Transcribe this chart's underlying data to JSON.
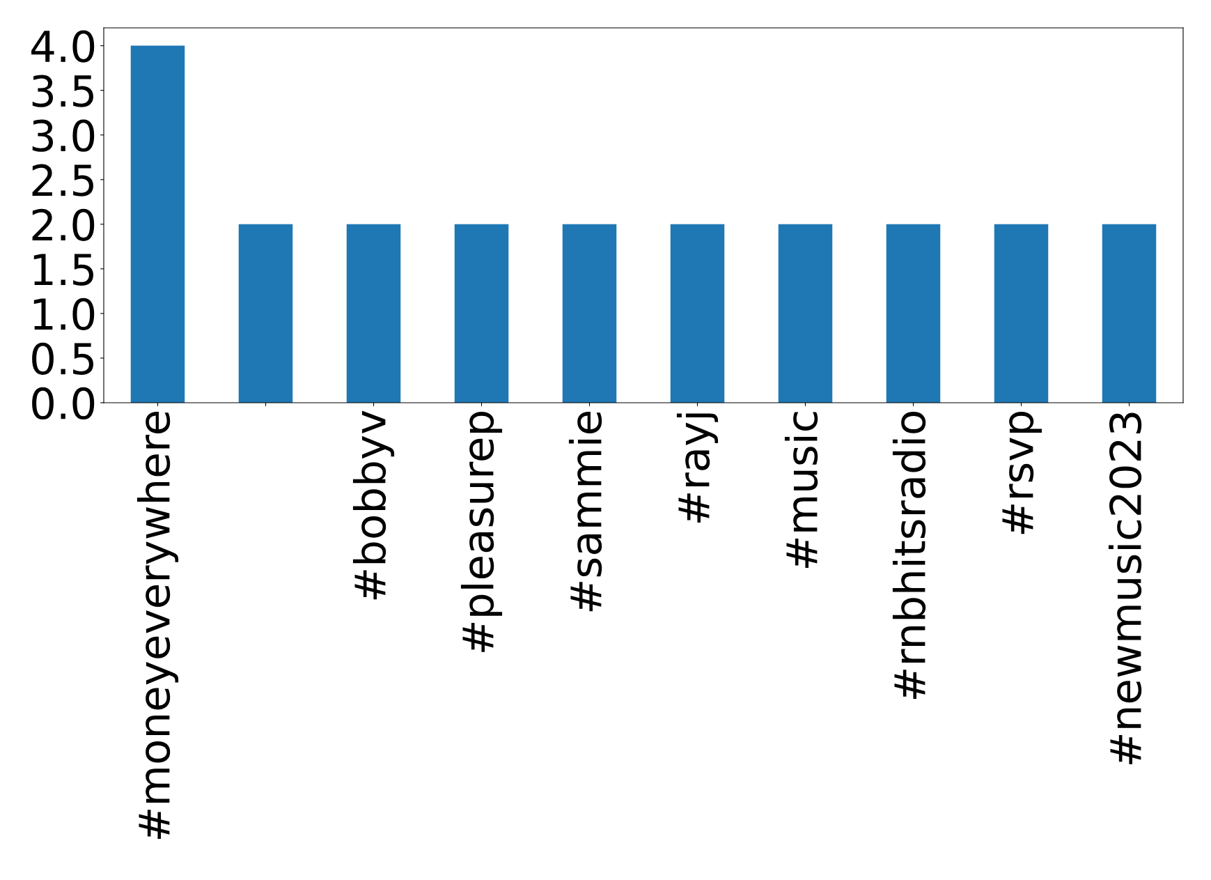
{
  "chart_data": {
    "type": "bar",
    "categories": [
      "#moneyeverywhere",
      null,
      "#bobbyv",
      "#pleasurep",
      "#sammie",
      "#rayj",
      "#music",
      "#rnbhitsradio",
      "#rsvp",
      "#newmusic2023"
    ],
    "values": [
      4,
      2,
      2,
      2,
      2,
      2,
      2,
      2,
      2,
      2
    ],
    "color": "#1f77b4",
    "ylim": [
      0,
      4.2
    ],
    "yticks": [
      {
        "value": 0,
        "label": "0.0"
      },
      {
        "value": 0.5,
        "label": "0.5"
      },
      {
        "value": 1,
        "label": "1.0"
      },
      {
        "value": 1.5,
        "label": "1.5"
      },
      {
        "value": 2,
        "label": "2.0"
      },
      {
        "value": 2.5,
        "label": "2.5"
      },
      {
        "value": 3,
        "label": "3.0"
      },
      {
        "value": 3.5,
        "label": "3.5"
      },
      {
        "value": 4,
        "label": "4.0"
      }
    ],
    "grid": false,
    "legend": false
  }
}
